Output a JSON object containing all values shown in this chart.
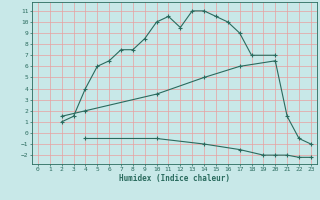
{
  "xlabel": "Humidex (Indice chaleur)",
  "bg_color": "#c8e8e8",
  "grid_color": "#e8a0a0",
  "line_color": "#2a6b5e",
  "line1_x": [
    2,
    3,
    4,
    5,
    6,
    7,
    8,
    9,
    10,
    11,
    12,
    13,
    14,
    15,
    16,
    17,
    18,
    20
  ],
  "line1_y": [
    1,
    1.5,
    4,
    6,
    6.5,
    7.5,
    7.5,
    8.5,
    10,
    10.5,
    9.5,
    11,
    11,
    10.5,
    10,
    9,
    7,
    7
  ],
  "line2_x": [
    2,
    4,
    10,
    14,
    17,
    20,
    21,
    22,
    23
  ],
  "line2_y": [
    1.5,
    2,
    3.5,
    5,
    6,
    6.5,
    1.5,
    -0.5,
    -1
  ],
  "line3_x": [
    4,
    10,
    14,
    17,
    19,
    20,
    21,
    22,
    23
  ],
  "line3_y": [
    -0.5,
    -0.5,
    -1,
    -1.5,
    -2,
    -2,
    -2,
    -2.2,
    -2.2
  ],
  "xlim": [
    -0.5,
    23.5
  ],
  "ylim": [
    -2.8,
    11.8
  ],
  "xticks": [
    0,
    1,
    2,
    3,
    4,
    5,
    6,
    7,
    8,
    9,
    10,
    11,
    12,
    13,
    14,
    15,
    16,
    17,
    18,
    19,
    20,
    21,
    22,
    23
  ],
  "yticks": [
    -2,
    -1,
    0,
    1,
    2,
    3,
    4,
    5,
    6,
    7,
    8,
    9,
    10,
    11
  ]
}
